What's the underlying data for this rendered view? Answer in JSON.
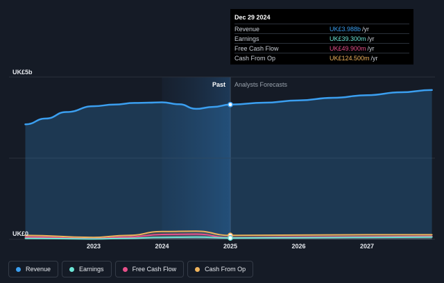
{
  "tooltip": {
    "date": "Dec 29 2024",
    "rows": [
      {
        "label": "Revenue",
        "value": "UK£3.988b",
        "unit": "/yr",
        "color": "#3b9ff0"
      },
      {
        "label": "Earnings",
        "value": "UK£39.300m",
        "unit": "/yr",
        "color": "#6de6d6"
      },
      {
        "label": "Free Cash Flow",
        "value": "UK£49.900m",
        "unit": "/yr",
        "color": "#e8508a"
      },
      {
        "label": "Cash From Op",
        "value": "UK£124.500m",
        "unit": "/yr",
        "color": "#f0b45c"
      }
    ]
  },
  "legend": [
    {
      "label": "Revenue",
      "color": "#3b9ff0"
    },
    {
      "label": "Earnings",
      "color": "#6de6d6"
    },
    {
      "label": "Free Cash Flow",
      "color": "#e8508a"
    },
    {
      "label": "Cash From Op",
      "color": "#f0b45c"
    }
  ],
  "chart_data": {
    "type": "area",
    "y_top_label": "UK£5b",
    "y_bottom_label": "UK£0",
    "ylim": [
      0,
      5
    ],
    "xlim": [
      2022.0,
      2028.0
    ],
    "x_ticks": [
      "2023",
      "2024",
      "2025",
      "2026",
      "2027"
    ],
    "past_label": "Past",
    "forecast_label": "Analysts Forecasts",
    "divider_x": 2025.0,
    "highlight_range": [
      2024.0,
      2025.0
    ],
    "y_unit": "UK£ billions",
    "series": [
      {
        "name": "Revenue",
        "color": "#3b9ff0",
        "x": [
          2022.0,
          2022.3,
          2022.6,
          2023.0,
          2023.3,
          2023.6,
          2023.8,
          2024.0,
          2024.25,
          2024.5,
          2024.75,
          2025.0,
          2025.5,
          2026.0,
          2026.5,
          2027.0,
          2027.5,
          2027.95
        ],
        "values": [
          3.54,
          3.72,
          3.92,
          4.1,
          4.15,
          4.2,
          4.21,
          4.22,
          4.16,
          4.02,
          4.08,
          4.15,
          4.21,
          4.28,
          4.36,
          4.44,
          4.53,
          4.6
        ]
      },
      {
        "name": "Cash From Op",
        "color": "#f0b45c",
        "x": [
          2022.0,
          2023.0,
          2023.5,
          2024.0,
          2024.5,
          2025.0,
          2026.0,
          2027.0,
          2027.95
        ],
        "values": [
          0.12,
          0.06,
          0.12,
          0.24,
          0.25,
          0.12,
          0.13,
          0.14,
          0.14
        ]
      },
      {
        "name": "Free Cash Flow",
        "color": "#e8508a",
        "x": [
          2022.0,
          2023.0,
          2023.5,
          2024.0,
          2024.5,
          2025.0,
          2026.0,
          2027.0,
          2027.95
        ],
        "values": [
          0.07,
          0.02,
          0.07,
          0.15,
          0.16,
          0.05,
          0.07,
          0.08,
          0.09
        ]
      },
      {
        "name": "Earnings",
        "color": "#6de6d6",
        "x": [
          2022.0,
          2023.0,
          2023.5,
          2024.0,
          2024.5,
          2025.0,
          2026.0,
          2027.0,
          2027.95
        ],
        "values": [
          0.03,
          0.01,
          0.03,
          0.06,
          0.07,
          0.04,
          0.05,
          0.06,
          0.07
        ]
      }
    ]
  }
}
